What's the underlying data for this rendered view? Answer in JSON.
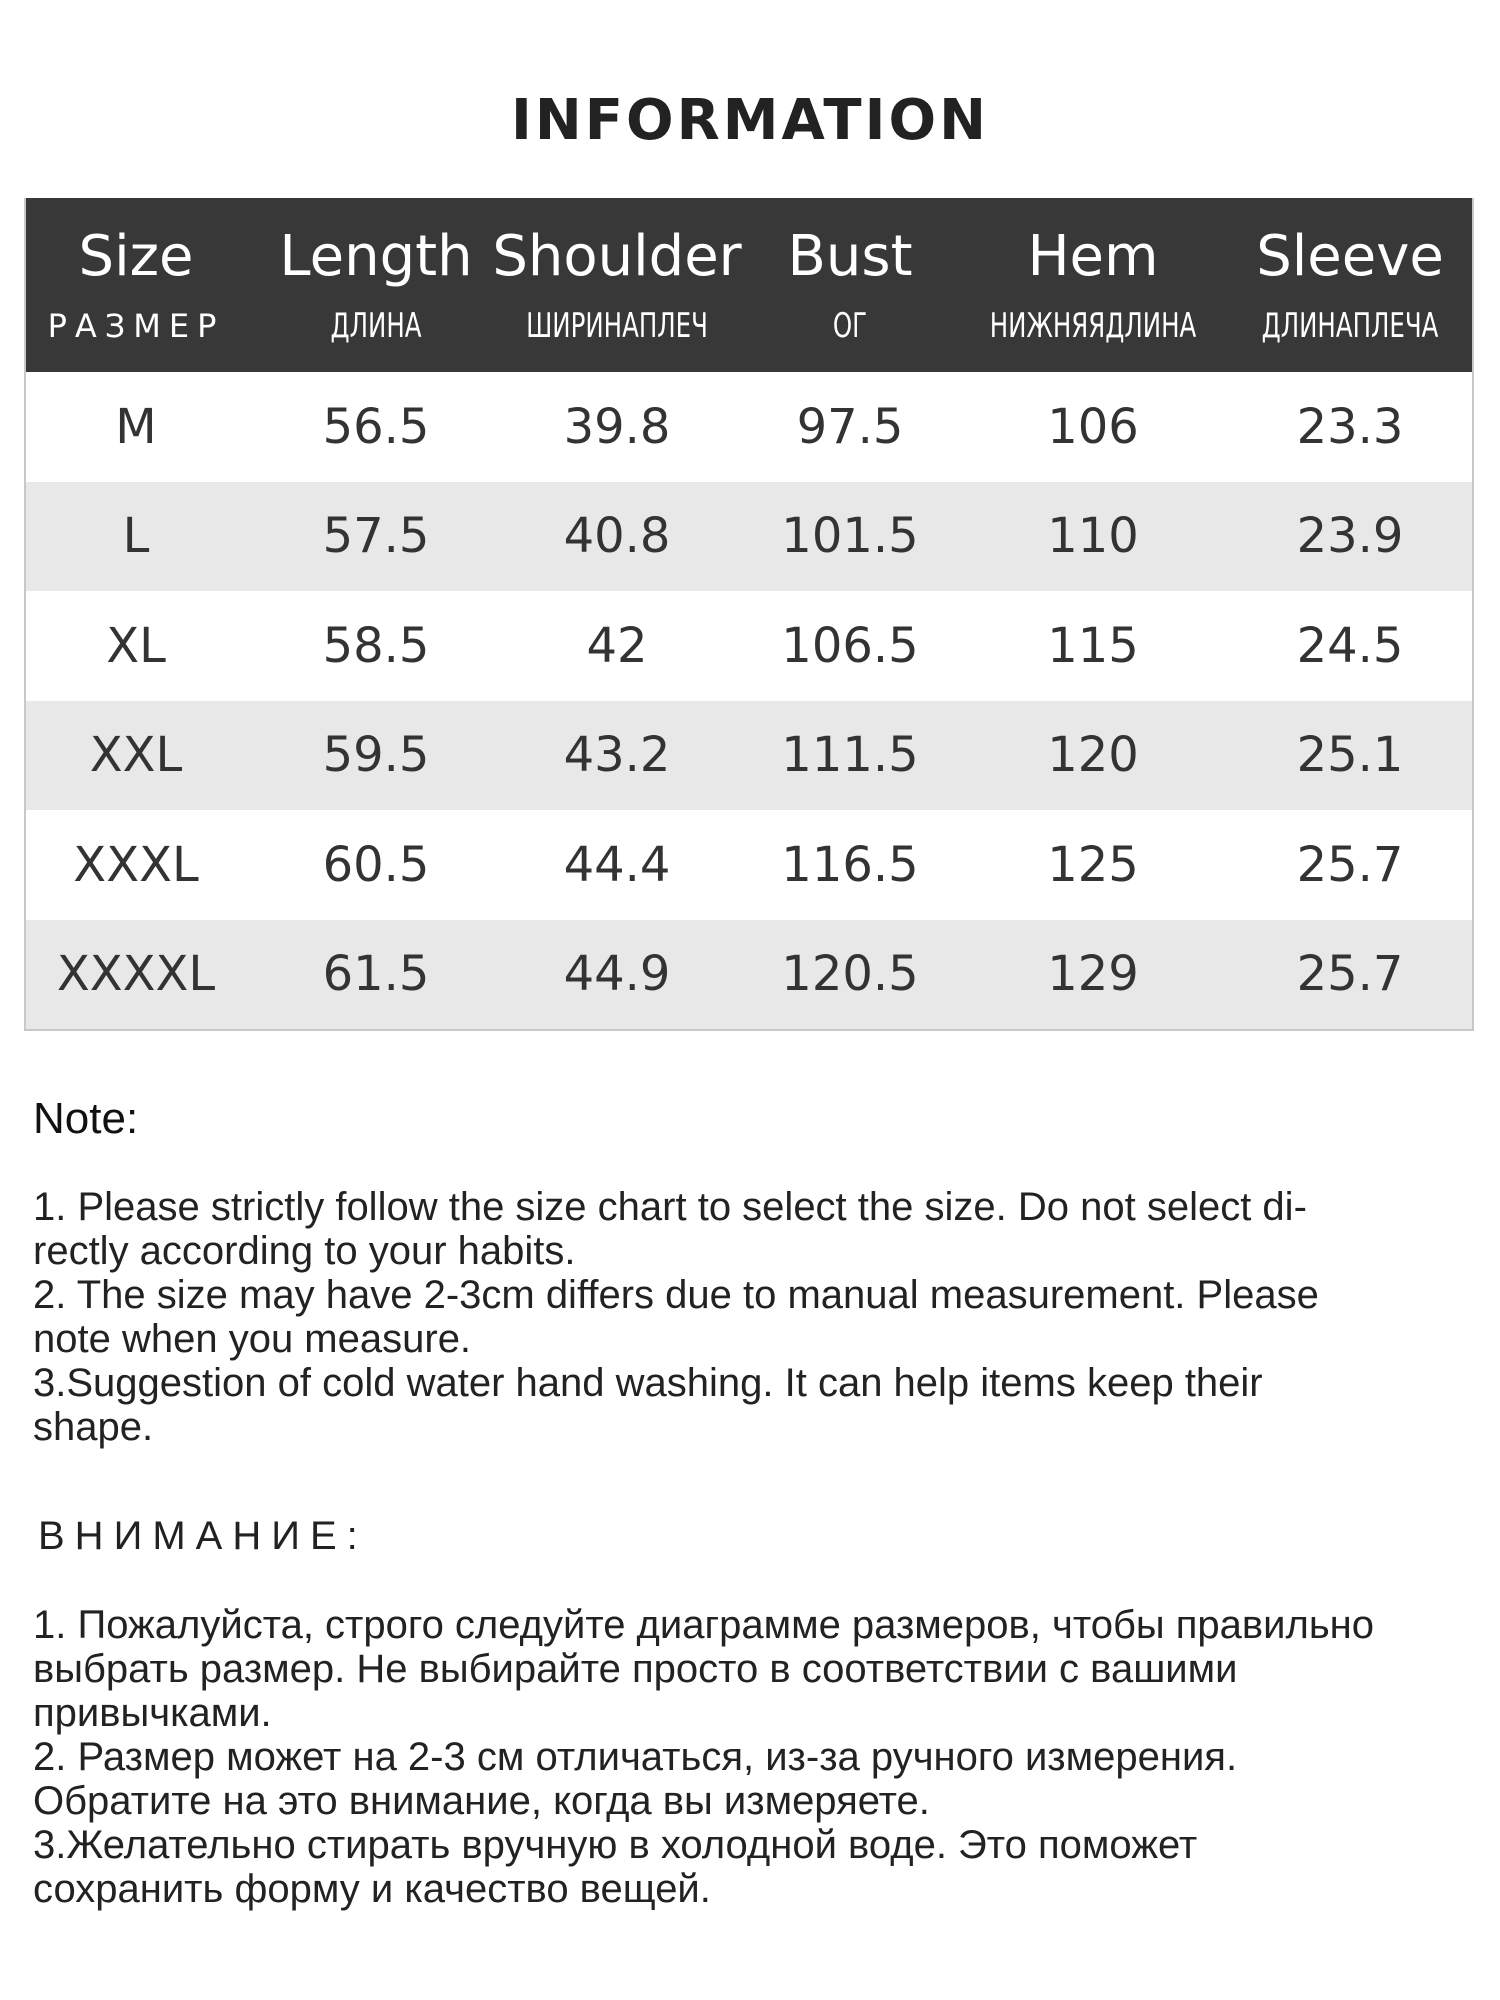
{
  "title": "INFORMATION",
  "table": {
    "columns": [
      {
        "en": "Size",
        "ru": "РАЗМЕР"
      },
      {
        "en": "Length",
        "ru": "ДЛИНА"
      },
      {
        "en": "Shoulder",
        "ru": "ШИРИНАПЛЕЧ"
      },
      {
        "en": "Bust",
        "ru": "ОГ"
      },
      {
        "en": "Hem",
        "ru": "НИЖНЯЯДЛИНА"
      },
      {
        "en": "Sleeve",
        "ru": "ДЛИНАПЛЕЧА"
      }
    ],
    "rows": [
      [
        "M",
        "56.5",
        "39.8",
        "97.5",
        "106",
        "23.3"
      ],
      [
        "L",
        "57.5",
        "40.8",
        "101.5",
        "110",
        "23.9"
      ],
      [
        "XL",
        "58.5",
        "42",
        "106.5",
        "115",
        "24.5"
      ],
      [
        "XXL",
        "59.5",
        "43.2",
        "111.5",
        "120",
        "25.1"
      ],
      [
        "XXXL",
        "60.5",
        "44.4",
        "116.5",
        "125",
        "25.7"
      ],
      [
        "XXXXL",
        "61.5",
        "44.9",
        "120.5",
        "129",
        "25.7"
      ]
    ],
    "header_color": "#383838",
    "alt_row_color": "#e8e8e8"
  },
  "note": {
    "heading": "Note:",
    "lines": [
      "1. Please strictly follow the size chart  to select the size. Do not select di-",
      "rectly according to your habits.",
      "2. The size may have 2-3cm differs due to manual measurement. Please",
      "note when you measure.",
      "3.Suggestion of cold water hand washing. It can help items keep their",
      "shape."
    ]
  },
  "note_ru": {
    "heading": "ВНИМАНИЕ:",
    "lines": [
      "1. Пожалуйста, строго следуйте диаграмме размеров, чтобы правильно",
      "выбрать размер. Не выбирайте просто в соответствии с вашими",
      "привычками.",
      "2. Размер может на 2-3 см отличаться, из-за ручного измерения.",
      "Обратите на это внимание, когда вы измеряете.",
      "3.Желательно стирать вручную в холодной воде. Это поможет",
      "сохранить форму и качество вещей."
    ]
  }
}
